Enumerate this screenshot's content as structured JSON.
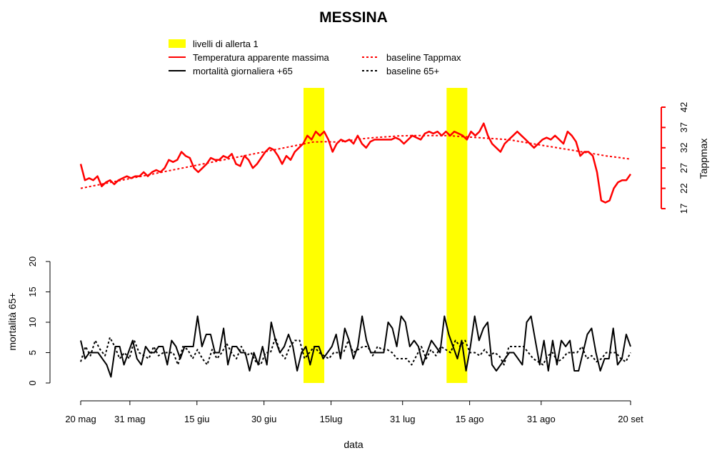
{
  "chart_data": {
    "type": "line",
    "title": "MESSINA",
    "xlabel": "data",
    "ylabel_left": "mortalità 65+",
    "ylabel_right": "Tappmax",
    "x_start": "2023-05-20",
    "x_end": "2023-09-20",
    "x_ticks": [
      {
        "date": "2023-05-20",
        "label": "20 mag"
      },
      {
        "date": "2023-05-31",
        "label": "31 mag"
      },
      {
        "date": "2023-06-15",
        "label": "15 giu"
      },
      {
        "date": "2023-06-30",
        "label": "30 giu"
      },
      {
        "date": "2023-07-15",
        "label": "15lug"
      },
      {
        "date": "2023-07-31",
        "label": "31 lug"
      },
      {
        "date": "2023-08-15",
        "label": "15 ago"
      },
      {
        "date": "2023-08-31",
        "label": "31 ago"
      },
      {
        "date": "2023-09-20",
        "label": "20 set"
      }
    ],
    "mortality_axis": {
      "min": 0,
      "max": 20,
      "ticks": [
        0,
        5,
        10,
        15,
        20
      ]
    },
    "temperature_axis": {
      "min": 17,
      "max": 42,
      "ticks": [
        17,
        22,
        27,
        32,
        37,
        42
      ],
      "color": "#ff0000"
    },
    "alert_color": "#ffff00",
    "alert_periods": [
      {
        "start": "2023-07-09",
        "end": "2023-07-13"
      },
      {
        "start": "2023-08-10",
        "end": "2023-08-14"
      }
    ],
    "legend": {
      "position": "top",
      "entries": [
        {
          "label": "livelli di allerta 1",
          "kind": "box",
          "color": "#ffff00"
        },
        {
          "label": "Temperatura apparente massima",
          "kind": "line",
          "color": "#ff0000",
          "dash": "solid"
        },
        {
          "label": "mortalità giornaliera +65",
          "kind": "line",
          "color": "#000000",
          "dash": "solid"
        },
        {
          "label": "baseline Tappmax",
          "kind": "line",
          "color": "#ff0000",
          "dash": "dotted"
        },
        {
          "label": "baseline 65+",
          "kind": "line",
          "color": "#000000",
          "dash": "dotted"
        }
      ]
    },
    "series": [
      {
        "name": "Temperatura apparente massima",
        "axis": "temperature",
        "color": "#ff0000",
        "dash": "solid",
        "values": [
          28,
          24,
          24.5,
          24,
          25,
          22.5,
          23.5,
          24,
          23,
          24,
          24.5,
          25,
          24.5,
          25,
          25,
          26,
          25,
          26,
          26.5,
          26,
          27,
          29,
          28.5,
          29,
          31,
          30,
          29.5,
          27,
          26,
          27,
          28,
          29.5,
          29,
          29,
          30,
          29.5,
          30.5,
          28,
          27.5,
          30,
          29,
          27,
          28,
          29.5,
          31,
          32,
          31.5,
          30,
          28,
          30,
          29,
          31,
          32,
          33,
          35,
          34,
          36,
          35,
          36,
          34,
          31,
          33,
          34,
          33.5,
          34,
          33,
          35,
          33,
          32,
          33.5,
          34,
          34,
          34,
          34,
          34,
          34.5,
          34,
          33,
          34,
          35,
          34.5,
          34,
          35.5,
          36,
          35.5,
          36,
          35,
          36,
          35,
          36,
          35.5,
          35,
          34,
          36,
          35,
          36,
          38,
          35,
          33,
          32,
          31,
          33,
          34,
          35,
          36,
          35,
          34,
          33,
          32,
          33,
          34,
          34.5,
          34,
          35,
          34,
          33,
          36,
          35,
          33.5,
          30,
          31,
          31,
          30,
          26,
          19,
          18.5,
          19,
          22,
          23.5,
          24,
          24,
          25.5
        ]
      },
      {
        "name": "baseline Tappmax",
        "axis": "temperature",
        "color": "#ff0000",
        "dash": "dotted",
        "values": [
          22,
          22.6,
          23.2,
          23.8,
          24.4,
          25,
          25.6,
          26.2,
          26.8,
          27.4,
          28,
          28.6,
          29.2,
          29.8,
          30.4,
          31,
          31.6,
          32.2,
          32.8,
          33.4,
          33.5,
          33.4,
          33.8,
          34.2,
          34.5,
          34.7,
          34.9,
          35,
          35,
          35,
          35,
          34.8,
          34.6,
          34.4,
          34.2,
          34,
          33.5,
          33,
          32.5,
          32,
          31.5,
          31,
          30.5,
          30,
          29.6,
          29.2
        ]
      },
      {
        "name": "mortalità giornaliera +65",
        "axis": "mortality",
        "color": "#000000",
        "dash": "solid",
        "values": [
          7,
          4,
          5,
          5,
          5,
          4,
          3,
          1,
          6,
          6,
          3,
          5,
          7,
          4,
          3,
          6,
          5,
          5,
          6,
          6,
          3,
          7,
          6,
          4,
          6,
          6,
          6,
          11,
          6,
          8,
          8,
          5,
          5,
          9,
          3,
          6,
          6,
          5,
          5,
          2,
          5,
          3,
          6,
          3,
          10,
          7,
          5,
          6,
          8,
          6,
          2,
          5,
          6,
          3,
          6,
          6,
          4,
          5,
          6,
          8,
          4,
          9,
          7,
          4,
          6,
          11,
          7,
          5,
          5,
          5,
          5,
          10,
          9,
          6,
          11,
          10,
          6,
          7,
          6,
          3,
          5,
          7,
          6,
          5,
          11,
          8,
          6,
          4,
          7,
          2,
          6,
          11,
          7,
          9,
          10,
          3,
          2,
          3,
          4,
          5,
          5,
          4,
          3,
          10,
          11,
          7,
          3,
          7,
          2,
          7,
          3,
          7,
          6,
          7,
          2,
          2,
          5,
          8,
          9,
          5,
          2,
          4,
          4,
          9,
          3,
          4,
          8,
          6
        ]
      },
      {
        "name": "baseline 65+",
        "axis": "mortality",
        "color": "#000000",
        "dash": "dotted",
        "values": [
          3.5,
          6,
          4.5,
          7,
          5.5,
          4.5,
          7.5,
          6,
          4,
          5,
          4,
          7,
          5,
          4.5,
          4,
          6,
          4.5,
          5,
          5,
          5,
          3,
          6,
          5.5,
          4,
          5.5,
          4,
          3,
          5.5,
          4,
          5,
          6.5,
          5,
          4,
          6,
          4.5,
          5,
          3.5,
          3,
          5,
          5,
          7.5,
          5,
          4,
          6,
          7,
          7,
          4,
          5,
          6,
          5,
          4.5,
          4,
          5,
          5,
          5,
          7,
          5,
          5.5,
          6,
          6,
          4.5,
          6,
          5.5,
          5.5,
          5,
          4,
          4,
          4,
          3,
          4.5,
          6,
          4,
          5.5,
          4.5,
          6,
          5.5,
          5,
          7,
          6,
          7,
          5,
          5,
          4.5,
          5.5,
          4.5,
          5,
          4.5,
          3,
          6,
          6,
          6,
          6,
          5,
          4,
          3.5,
          3,
          4.5,
          5,
          3.5,
          4,
          5,
          5,
          5,
          6,
          4,
          4.5,
          3.5,
          4,
          5,
          5,
          5,
          4,
          3.5,
          5
        ]
      }
    ]
  }
}
